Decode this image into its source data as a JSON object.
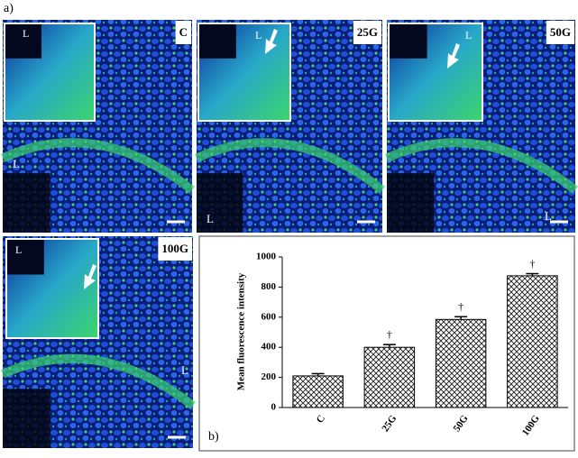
{
  "figure_tag": "a)",
  "chart_tag": "b)",
  "panels": [
    {
      "label": "C",
      "inset_label": "L",
      "region_label": "L"
    },
    {
      "label": "25G",
      "inset_label": "L",
      "region_label": "L"
    },
    {
      "label": "50G",
      "inset_label": "L",
      "region_label": "L"
    },
    {
      "label": "100G",
      "inset_label": "L",
      "region_label": "L"
    }
  ],
  "chart_data": {
    "type": "bar",
    "y_label": "Mean fluorescence intensity",
    "categories": [
      "C",
      "25G",
      "50G",
      "100G"
    ],
    "values": [
      210,
      400,
      585,
      875
    ],
    "errors": [
      15,
      18,
      18,
      14
    ],
    "annotations": [
      null,
      "†",
      "†",
      "†"
    ],
    "ylim": [
      0,
      1000
    ],
    "yticks": [
      0,
      200,
      400,
      600,
      800,
      1000
    ]
  }
}
